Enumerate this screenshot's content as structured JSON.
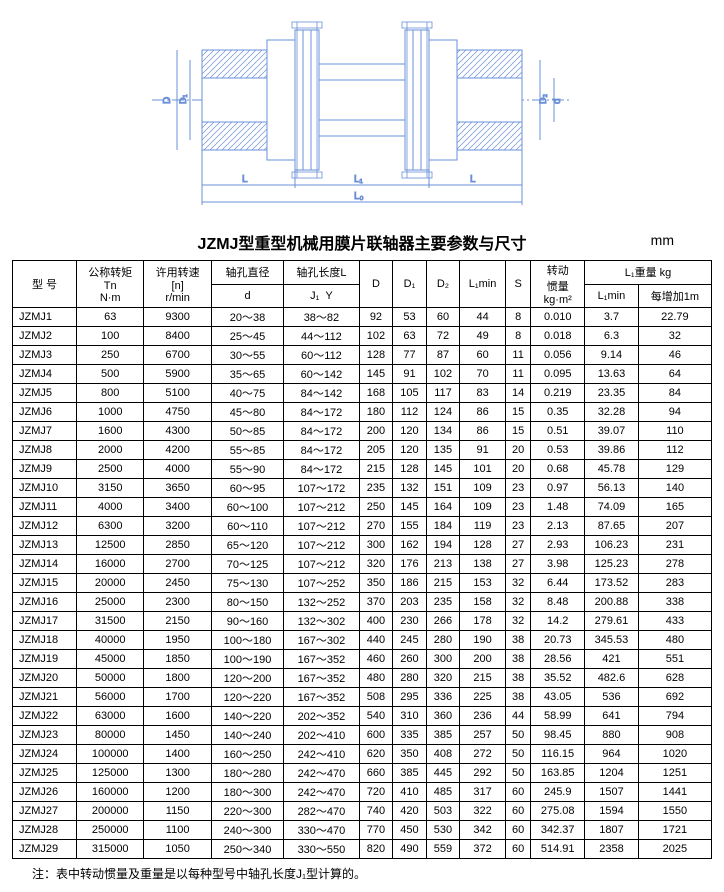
{
  "diagram": {
    "stroke": "#6a8fd8",
    "hatch": "#6a8fd8",
    "labels": {
      "D": "D",
      "D1": "D₁",
      "D2": "D₂",
      "d": "d",
      "L": "L",
      "L1": "L₁",
      "L0": "L₀",
      "S": ""
    }
  },
  "title": "JZMJ型重型机械用膜片联轴器主要参数与尺寸",
  "unit": "mm",
  "headers": {
    "model": "型 号",
    "tn": "公称转矩\nTn\nN·m",
    "n": "许用转速\n[n]\nr/min",
    "d": "轴孔直径\nd",
    "L": "轴孔长度L\nJ₁  Y",
    "D": "D",
    "D1": "D₁",
    "D2": "D₂",
    "L1min": "L₁min",
    "S": "S",
    "inertia": "转动\n惯量\nkg·m²",
    "weight_group": "L₁重量 kg",
    "L1min_w": "L₁min",
    "per1m": "每增加1m"
  },
  "rows": [
    {
      "m": "JZMJ1",
      "tn": "63",
      "n": "9300",
      "d": "20～38",
      "L": "38～82",
      "D": "92",
      "D1": "53",
      "D2": "60",
      "L1min": "44",
      "S": "8",
      "I": "0.010",
      "w1": "3.7",
      "w2": "22.79"
    },
    {
      "m": "JZMJ2",
      "tn": "100",
      "n": "8400",
      "d": "25～45",
      "L": "44～112",
      "D": "102",
      "D1": "63",
      "D2": "72",
      "L1min": "49",
      "S": "8",
      "I": "0.018",
      "w1": "6.3",
      "w2": "32"
    },
    {
      "m": "JZMJ3",
      "tn": "250",
      "n": "6700",
      "d": "30～55",
      "L": "60～112",
      "D": "128",
      "D1": "77",
      "D2": "87",
      "L1min": "60",
      "S": "11",
      "I": "0.056",
      "w1": "9.14",
      "w2": "46"
    },
    {
      "m": "JZMJ4",
      "tn": "500",
      "n": "5900",
      "d": "35～65",
      "L": "60～142",
      "D": "145",
      "D1": "91",
      "D2": "102",
      "L1min": "70",
      "S": "11",
      "I": "0.095",
      "w1": "13.63",
      "w2": "64"
    },
    {
      "m": "JZMJ5",
      "tn": "800",
      "n": "5100",
      "d": "40～75",
      "L": "84～142",
      "D": "168",
      "D1": "105",
      "D2": "117",
      "L1min": "83",
      "S": "14",
      "I": "0.219",
      "w1": "23.35",
      "w2": "84"
    },
    {
      "m": "JZMJ6",
      "tn": "1000",
      "n": "4750",
      "d": "45～80",
      "L": "84～172",
      "D": "180",
      "D1": "112",
      "D2": "124",
      "L1min": "86",
      "S": "15",
      "I": "0.35",
      "w1": "32.28",
      "w2": "94"
    },
    {
      "m": "JZMJ7",
      "tn": "1600",
      "n": "4300",
      "d": "50～85",
      "L": "84～172",
      "D": "200",
      "D1": "120",
      "D2": "134",
      "L1min": "86",
      "S": "15",
      "I": "0.51",
      "w1": "39.07",
      "w2": "110"
    },
    {
      "m": "JZMJ8",
      "tn": "2000",
      "n": "4200",
      "d": "55～85",
      "L": "84～172",
      "D": "205",
      "D1": "120",
      "D2": "135",
      "L1min": "91",
      "S": "20",
      "I": "0.53",
      "w1": "39.86",
      "w2": "112"
    },
    {
      "m": "JZMJ9",
      "tn": "2500",
      "n": "4000",
      "d": "55～90",
      "L": "84～172",
      "D": "215",
      "D1": "128",
      "D2": "145",
      "L1min": "101",
      "S": "20",
      "I": "0.68",
      "w1": "45.78",
      "w2": "129"
    },
    {
      "m": "JZMJ10",
      "tn": "3150",
      "n": "3650",
      "d": "60～95",
      "L": "107～172",
      "D": "235",
      "D1": "132",
      "D2": "151",
      "L1min": "109",
      "S": "23",
      "I": "0.97",
      "w1": "56.13",
      "w2": "140"
    },
    {
      "m": "JZMJ11",
      "tn": "4000",
      "n": "3400",
      "d": "60～100",
      "L": "107～212",
      "D": "250",
      "D1": "145",
      "D2": "164",
      "L1min": "109",
      "S": "23",
      "I": "1.48",
      "w1": "74.09",
      "w2": "165"
    },
    {
      "m": "JZMJ12",
      "tn": "6300",
      "n": "3200",
      "d": "60～110",
      "L": "107～212",
      "D": "270",
      "D1": "155",
      "D2": "184",
      "L1min": "119",
      "S": "23",
      "I": "2.13",
      "w1": "87.65",
      "w2": "207"
    },
    {
      "m": "JZMJ13",
      "tn": "12500",
      "n": "2850",
      "d": "65～120",
      "L": "107～212",
      "D": "300",
      "D1": "162",
      "D2": "194",
      "L1min": "128",
      "S": "27",
      "I": "2.93",
      "w1": "106.23",
      "w2": "231"
    },
    {
      "m": "JZMJ14",
      "tn": "16000",
      "n": "2700",
      "d": "70～125",
      "L": "107～212",
      "D": "320",
      "D1": "176",
      "D2": "213",
      "L1min": "138",
      "S": "27",
      "I": "3.98",
      "w1": "125.23",
      "w2": "278"
    },
    {
      "m": "JZMJ15",
      "tn": "20000",
      "n": "2450",
      "d": "75～130",
      "L": "107～252",
      "D": "350",
      "D1": "186",
      "D2": "215",
      "L1min": "153",
      "S": "32",
      "I": "6.44",
      "w1": "173.52",
      "w2": "283"
    },
    {
      "m": "JZMJ16",
      "tn": "25000",
      "n": "2300",
      "d": "80～150",
      "L": "132～252",
      "D": "370",
      "D1": "203",
      "D2": "235",
      "L1min": "158",
      "S": "32",
      "I": "8.48",
      "w1": "200.88",
      "w2": "338"
    },
    {
      "m": "JZMJ17",
      "tn": "31500",
      "n": "2150",
      "d": "90～160",
      "L": "132～302",
      "D": "400",
      "D1": "230",
      "D2": "266",
      "L1min": "178",
      "S": "32",
      "I": "14.2",
      "w1": "279.61",
      "w2": "433"
    },
    {
      "m": "JZMJ18",
      "tn": "40000",
      "n": "1950",
      "d": "100～180",
      "L": "167～302",
      "D": "440",
      "D1": "245",
      "D2": "280",
      "L1min": "190",
      "S": "38",
      "I": "20.73",
      "w1": "345.53",
      "w2": "480"
    },
    {
      "m": "JZMJ19",
      "tn": "45000",
      "n": "1850",
      "d": "100～190",
      "L": "167～352",
      "D": "460",
      "D1": "260",
      "D2": "300",
      "L1min": "200",
      "S": "38",
      "I": "28.56",
      "w1": "421",
      "w2": "551"
    },
    {
      "m": "JZMJ20",
      "tn": "50000",
      "n": "1800",
      "d": "120～200",
      "L": "167～352",
      "D": "480",
      "D1": "280",
      "D2": "320",
      "L1min": "215",
      "S": "38",
      "I": "35.52",
      "w1": "482.6",
      "w2": "628"
    },
    {
      "m": "JZMJ21",
      "tn": "56000",
      "n": "1700",
      "d": "120～220",
      "L": "167～352",
      "D": "508",
      "D1": "295",
      "D2": "336",
      "L1min": "225",
      "S": "38",
      "I": "43.05",
      "w1": "536",
      "w2": "692"
    },
    {
      "m": "JZMJ22",
      "tn": "63000",
      "n": "1600",
      "d": "140～220",
      "L": "202～352",
      "D": "540",
      "D1": "310",
      "D2": "360",
      "L1min": "236",
      "S": "44",
      "I": "58.99",
      "w1": "641",
      "w2": "794"
    },
    {
      "m": "JZMJ23",
      "tn": "80000",
      "n": "1450",
      "d": "140～240",
      "L": "202～410",
      "D": "600",
      "D1": "335",
      "D2": "385",
      "L1min": "257",
      "S": "50",
      "I": "98.45",
      "w1": "880",
      "w2": "908"
    },
    {
      "m": "JZMJ24",
      "tn": "100000",
      "n": "1400",
      "d": "160～250",
      "L": "242～410",
      "D": "620",
      "D1": "350",
      "D2": "408",
      "L1min": "272",
      "S": "50",
      "I": "116.15",
      "w1": "964",
      "w2": "1020"
    },
    {
      "m": "JZMJ25",
      "tn": "125000",
      "n": "1300",
      "d": "180～280",
      "L": "242～470",
      "D": "660",
      "D1": "385",
      "D2": "445",
      "L1min": "292",
      "S": "50",
      "I": "163.85",
      "w1": "1204",
      "w2": "1251"
    },
    {
      "m": "JZMJ26",
      "tn": "160000",
      "n": "1200",
      "d": "180～300",
      "L": "242～470",
      "D": "720",
      "D1": "410",
      "D2": "485",
      "L1min": "317",
      "S": "60",
      "I": "245.9",
      "w1": "1507",
      "w2": "1441"
    },
    {
      "m": "JZMJ27",
      "tn": "200000",
      "n": "1150",
      "d": "220～300",
      "L": "282～470",
      "D": "740",
      "D1": "420",
      "D2": "503",
      "L1min": "322",
      "S": "60",
      "I": "275.08",
      "w1": "1594",
      "w2": "1550"
    },
    {
      "m": "JZMJ28",
      "tn": "250000",
      "n": "1100",
      "d": "240～300",
      "L": "330～470",
      "D": "770",
      "D1": "450",
      "D2": "530",
      "L1min": "342",
      "S": "60",
      "I": "342.37",
      "w1": "1807",
      "w2": "1721"
    },
    {
      "m": "JZMJ29",
      "tn": "315000",
      "n": "1050",
      "d": "250～340",
      "L": "330～550",
      "D": "820",
      "D1": "490",
      "D2": "559",
      "L1min": "372",
      "S": "60",
      "I": "514.91",
      "w1": "2358",
      "w2": "2025"
    }
  ],
  "note": "注：表中转动惯量及重量是以每种型号中轴孔长度J₁型计算的。"
}
